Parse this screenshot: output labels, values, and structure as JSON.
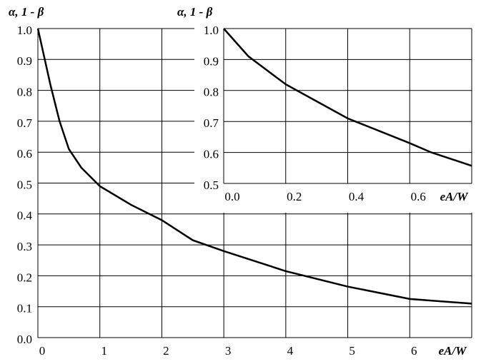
{
  "chart_data": [
    {
      "type": "line",
      "y_label": "α, 1 - β",
      "x_label": "eA/W",
      "x": [
        0,
        0.2,
        0.35,
        0.5,
        0.7,
        1,
        1.5,
        2,
        2.5,
        3,
        4,
        5,
        6,
        7
      ],
      "values": [
        1.0,
        0.82,
        0.7,
        0.61,
        0.55,
        0.49,
        0.43,
        0.38,
        0.315,
        0.28,
        0.215,
        0.165,
        0.125,
        0.11
      ],
      "color": "#000000",
      "xlim": [
        0,
        7
      ],
      "ylim": [
        0,
        1
      ],
      "xticks": [
        0,
        1,
        2,
        3,
        4,
        5,
        6
      ],
      "yticks": [
        {
          "value": 0,
          "label": "0.0"
        },
        0.1,
        0.2,
        0.3,
        0.4,
        0.5,
        0.6,
        0.7,
        0.8,
        0.9,
        {
          "value": 1,
          "label": "1.0"
        }
      ],
      "grid": true
    },
    {
      "type": "line",
      "y_label": "α, 1 - β",
      "x_label": "eA/W",
      "x": [
        0,
        0.08,
        0.2,
        0.4,
        0.6,
        0.67,
        0.8
      ],
      "values": [
        1.0,
        0.91,
        0.82,
        0.71,
        0.63,
        0.6,
        0.557
      ],
      "color": "#000000",
      "xlim": [
        0,
        0.8
      ],
      "ylim": [
        0.5,
        1
      ],
      "xticks": [
        {
          "value": 0,
          "label": "0.0"
        },
        0.2,
        0.4,
        0.6
      ],
      "yticks": [
        0.5,
        0.6,
        0.7,
        0.8,
        0.9,
        {
          "value": 1,
          "label": "1.0"
        }
      ],
      "grid": true
    }
  ]
}
